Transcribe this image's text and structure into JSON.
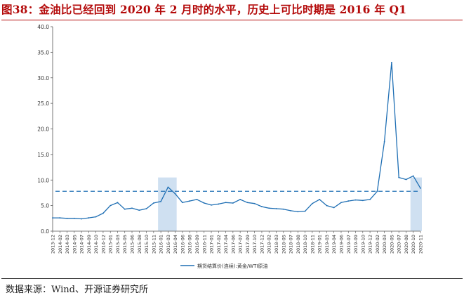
{
  "figure": {
    "title": "图38：金油比已经回到 2020 年 2 月时的水平，历史上可比时期是 2016 年 Q1",
    "source": "数据来源：Wind、开源证券研究所"
  },
  "colors": {
    "title": "#b40a0a",
    "series": "#1f6fb4",
    "highlight": "#cfe0f1",
    "reference_line": "#1f6fb4"
  },
  "chart_data": {
    "type": "line",
    "legend": {
      "position": "bottom-center",
      "entries": [
        "期货结算价(连续):黄金/WTI原油"
      ]
    },
    "ylim": [
      0,
      40
    ],
    "yticks": [
      "0.0",
      "5.0",
      "10.0",
      "15.0",
      "20.0",
      "25.0",
      "30.0",
      "35.0",
      "40.0"
    ],
    "x_categories": [
      "2013-12",
      "2014-02",
      "2014-03",
      "2014-05",
      "2014-07",
      "2014-09",
      "2014-10",
      "2014-12",
      "2015-01",
      "2015-03",
      "2015-05",
      "2015-06",
      "2015-08",
      "2015-10",
      "2015-11",
      "2016-01",
      "2016-03",
      "2016-04",
      "2016-06",
      "2016-08",
      "2016-09",
      "2016-11",
      "2017-01",
      "2017-02",
      "2017-04",
      "2017-06",
      "2017-07",
      "2017-09",
      "2017-10",
      "2017-12",
      "2018-02",
      "2018-03",
      "2018-05",
      "2018-07",
      "2018-08",
      "2018-10",
      "2018-11",
      "2019-01",
      "2019-03",
      "2019-04",
      "2019-06",
      "2019-07",
      "2019-09",
      "2019-10",
      "2019-12",
      "2020-02",
      "2020-03",
      "2020-05",
      "2020-07",
      "2020-08",
      "2020-10",
      "2020-11"
    ],
    "reference_line": {
      "y": 7.8,
      "style": "dashed"
    },
    "highlight_ranges": [
      {
        "from": "2016-01",
        "to": "2016-04"
      },
      {
        "from": "2020-10",
        "to": "2020-11"
      }
    ],
    "series": [
      {
        "name": "期货结算价(连续):黄金/WTI原油",
        "points": [
          [
            "2013-12",
            2.6
          ],
          [
            "2014-02",
            2.6
          ],
          [
            "2014-03",
            2.5
          ],
          [
            "2014-05",
            2.5
          ],
          [
            "2014-07",
            2.4
          ],
          [
            "2014-09",
            2.6
          ],
          [
            "2014-10",
            2.8
          ],
          [
            "2014-12",
            3.5
          ],
          [
            "2015-01",
            5.0
          ],
          [
            "2015-03",
            5.6
          ],
          [
            "2015-05",
            4.3
          ],
          [
            "2015-06",
            4.5
          ],
          [
            "2015-08",
            4.1
          ],
          [
            "2015-10",
            4.4
          ],
          [
            "2015-11",
            5.5
          ],
          [
            "2016-01",
            5.8
          ],
          [
            "2016-03",
            8.6
          ],
          [
            "2016-04",
            7.3
          ],
          [
            "2016-06",
            5.6
          ],
          [
            "2016-08",
            5.9
          ],
          [
            "2016-09",
            6.2
          ],
          [
            "2016-11",
            5.5
          ],
          [
            "2017-01",
            5.1
          ],
          [
            "2017-02",
            5.3
          ],
          [
            "2017-04",
            5.6
          ],
          [
            "2017-06",
            5.5
          ],
          [
            "2017-07",
            6.2
          ],
          [
            "2017-09",
            5.6
          ],
          [
            "2017-10",
            5.4
          ],
          [
            "2017-12",
            4.8
          ],
          [
            "2018-02",
            4.5
          ],
          [
            "2018-03",
            4.4
          ],
          [
            "2018-05",
            4.3
          ],
          [
            "2018-07",
            4.0
          ],
          [
            "2018-08",
            3.8
          ],
          [
            "2018-10",
            3.9
          ],
          [
            "2018-11",
            5.4
          ],
          [
            "2019-01",
            6.2
          ],
          [
            "2019-03",
            5.0
          ],
          [
            "2019-04",
            4.6
          ],
          [
            "2019-06",
            5.6
          ],
          [
            "2019-07",
            5.9
          ],
          [
            "2019-09",
            6.1
          ],
          [
            "2019-10",
            6.0
          ],
          [
            "2019-12",
            6.2
          ],
          [
            "2020-02",
            7.8
          ],
          [
            "2020-03",
            17.5
          ],
          [
            "2020-05",
            33.0
          ],
          [
            "2020-07",
            10.5
          ],
          [
            "2020-08",
            10.1
          ],
          [
            "2020-10",
            10.8
          ],
          [
            "2020-11",
            8.4
          ]
        ]
      }
    ]
  }
}
